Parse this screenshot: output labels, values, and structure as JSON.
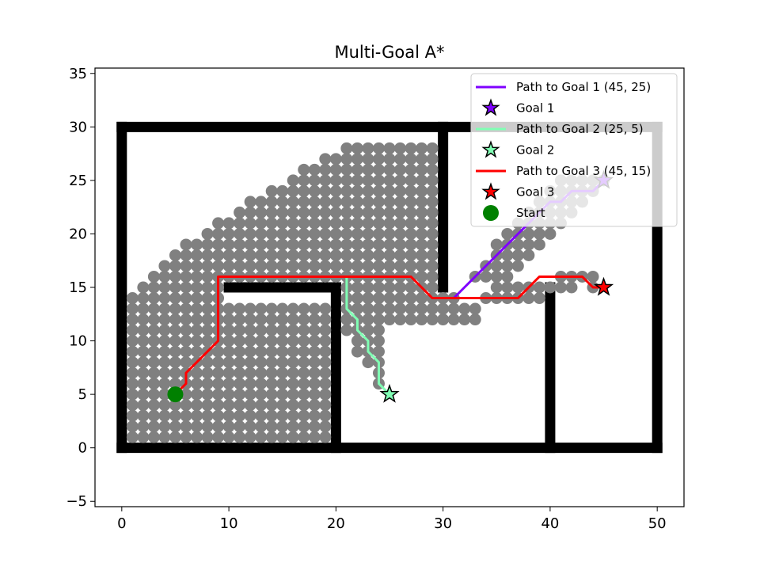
{
  "chart_data": {
    "type": "scatter",
    "title": "Multi-Goal A*",
    "xlabel": "",
    "ylabel": "",
    "xlim": [
      -2.5,
      52.5
    ],
    "ylim": [
      -5.5,
      35.5
    ],
    "xticks": [
      0,
      10,
      20,
      30,
      40,
      50
    ],
    "yticks": [
      -5,
      0,
      5,
      10,
      15,
      20,
      25,
      30,
      35
    ],
    "xtick_labels": [
      "0",
      "10",
      "20",
      "30",
      "40",
      "50"
    ],
    "ytick_labels": [
      "−5",
      "0",
      "5",
      "10",
      "15",
      "20",
      "25",
      "30",
      "35"
    ],
    "grid": false,
    "legend_position": "upper right",
    "walls": [
      {
        "x": [
          0,
          50
        ],
        "y": [
          0,
          0
        ]
      },
      {
        "x": [
          0,
          50
        ],
        "y": [
          30,
          30
        ]
      },
      {
        "x": [
          0,
          0
        ],
        "y": [
          0,
          30
        ]
      },
      {
        "x": [
          50,
          50
        ],
        "y": [
          0,
          30
        ]
      },
      {
        "x": [
          20,
          20
        ],
        "y": [
          0,
          15
        ]
      },
      {
        "x": [
          10,
          20
        ],
        "y": [
          15,
          15
        ]
      },
      {
        "x": [
          30,
          30
        ],
        "y": [
          15,
          30
        ]
      },
      {
        "x": [
          40,
          40
        ],
        "y": [
          0,
          15
        ]
      }
    ],
    "explored_color": "#808080",
    "explored": [
      [
        1,
        1,
        19,
        1
      ],
      [
        1,
        2,
        19,
        2
      ],
      [
        1,
        3,
        19,
        3
      ],
      [
        1,
        4,
        19,
        4
      ],
      [
        1,
        5,
        19,
        5
      ],
      [
        1,
        6,
        19,
        6
      ],
      [
        1,
        7,
        19,
        7
      ],
      [
        1,
        8,
        19,
        8
      ],
      [
        1,
        9,
        19,
        9
      ],
      [
        1,
        10,
        19,
        10
      ],
      [
        1,
        11,
        19,
        11
      ],
      [
        1,
        12,
        19,
        12
      ],
      [
        1,
        13,
        19,
        13
      ],
      [
        1,
        14,
        9,
        14
      ],
      [
        2,
        15,
        9,
        15
      ],
      [
        3,
        16,
        29,
        16
      ],
      [
        4,
        17,
        29,
        17
      ],
      [
        5,
        18,
        29,
        18
      ],
      [
        6,
        19,
        29,
        19
      ],
      [
        8,
        20,
        29,
        20
      ],
      [
        9,
        21,
        29,
        21
      ],
      [
        11,
        22,
        29,
        22
      ],
      [
        12,
        23,
        29,
        23
      ],
      [
        14,
        24,
        29,
        24
      ],
      [
        16,
        25,
        29,
        25
      ],
      [
        17,
        26,
        29,
        26
      ],
      [
        19,
        27,
        29,
        27
      ],
      [
        21,
        28,
        29,
        28
      ],
      [
        21,
        15,
        29,
        15
      ],
      [
        21,
        14,
        31,
        14
      ],
      [
        21,
        13,
        33,
        13
      ],
      [
        21,
        12,
        33,
        12
      ],
      [
        21,
        11,
        24,
        11
      ],
      [
        22,
        10,
        24,
        10
      ],
      [
        22,
        9,
        24,
        9
      ],
      [
        23,
        8,
        24,
        8
      ],
      [
        24,
        7,
        24,
        7
      ],
      [
        24,
        6,
        24,
        6
      ],
      [
        34,
        14,
        39,
        14
      ],
      [
        35,
        15,
        42,
        15
      ],
      [
        41,
        16,
        44,
        16
      ],
      [
        33,
        16,
        36,
        16
      ],
      [
        34,
        17,
        37,
        17
      ],
      [
        35,
        18,
        38,
        18
      ],
      [
        35,
        19,
        39,
        19
      ],
      [
        36,
        20,
        40,
        20
      ],
      [
        37,
        21,
        41,
        21
      ],
      [
        38,
        22,
        42,
        22
      ],
      [
        39,
        23,
        43,
        23
      ],
      [
        40,
        24,
        44,
        24
      ],
      [
        41,
        25,
        45,
        25
      ],
      [
        44,
        15,
        44,
        15
      ]
    ],
    "series": [
      {
        "name": "Path to Goal 1 (45, 25)",
        "type": "line",
        "color": "#7f00ff",
        "points": [
          [
            31,
            14
          ],
          [
            32,
            15
          ],
          [
            33,
            16
          ],
          [
            34,
            17
          ],
          [
            35,
            18
          ],
          [
            36,
            19
          ],
          [
            37,
            20
          ],
          [
            38,
            21
          ],
          [
            39,
            22
          ],
          [
            40,
            23
          ],
          [
            41,
            23
          ],
          [
            42,
            24
          ],
          [
            43,
            24
          ],
          [
            44,
            24
          ],
          [
            45,
            25
          ]
        ]
      },
      {
        "name": "Goal 1",
        "type": "marker",
        "marker": "star",
        "color": "#7f00ff",
        "points": [
          [
            45,
            25
          ]
        ]
      },
      {
        "name": "Path to Goal 2 (25, 5)",
        "type": "line",
        "color": "#80ffb4",
        "points": [
          [
            21,
            16
          ],
          [
            21,
            13
          ],
          [
            22,
            12
          ],
          [
            22,
            11
          ],
          [
            23,
            10
          ],
          [
            23,
            9
          ],
          [
            24,
            8
          ],
          [
            24,
            6
          ],
          [
            25,
            5
          ]
        ]
      },
      {
        "name": "Goal 2",
        "type": "marker",
        "marker": "star",
        "color": "#80ffb4",
        "points": [
          [
            25,
            5
          ]
        ]
      },
      {
        "name": "Path to Goal 3 (45, 15)",
        "type": "line",
        "color": "#ff0000",
        "points": [
          [
            5,
            5
          ],
          [
            6,
            6
          ],
          [
            6,
            7
          ],
          [
            9,
            10
          ],
          [
            9,
            16
          ],
          [
            27,
            16
          ],
          [
            29,
            14
          ],
          [
            37,
            14
          ],
          [
            39,
            16
          ],
          [
            43,
            16
          ],
          [
            44,
            15
          ],
          [
            45,
            15
          ]
        ]
      },
      {
        "name": "Goal 3",
        "type": "marker",
        "marker": "star",
        "color": "#ff0000",
        "points": [
          [
            45,
            15
          ]
        ]
      },
      {
        "name": "Start",
        "type": "marker",
        "marker": "circle",
        "color": "#008000",
        "points": [
          [
            5,
            5
          ]
        ]
      }
    ]
  }
}
